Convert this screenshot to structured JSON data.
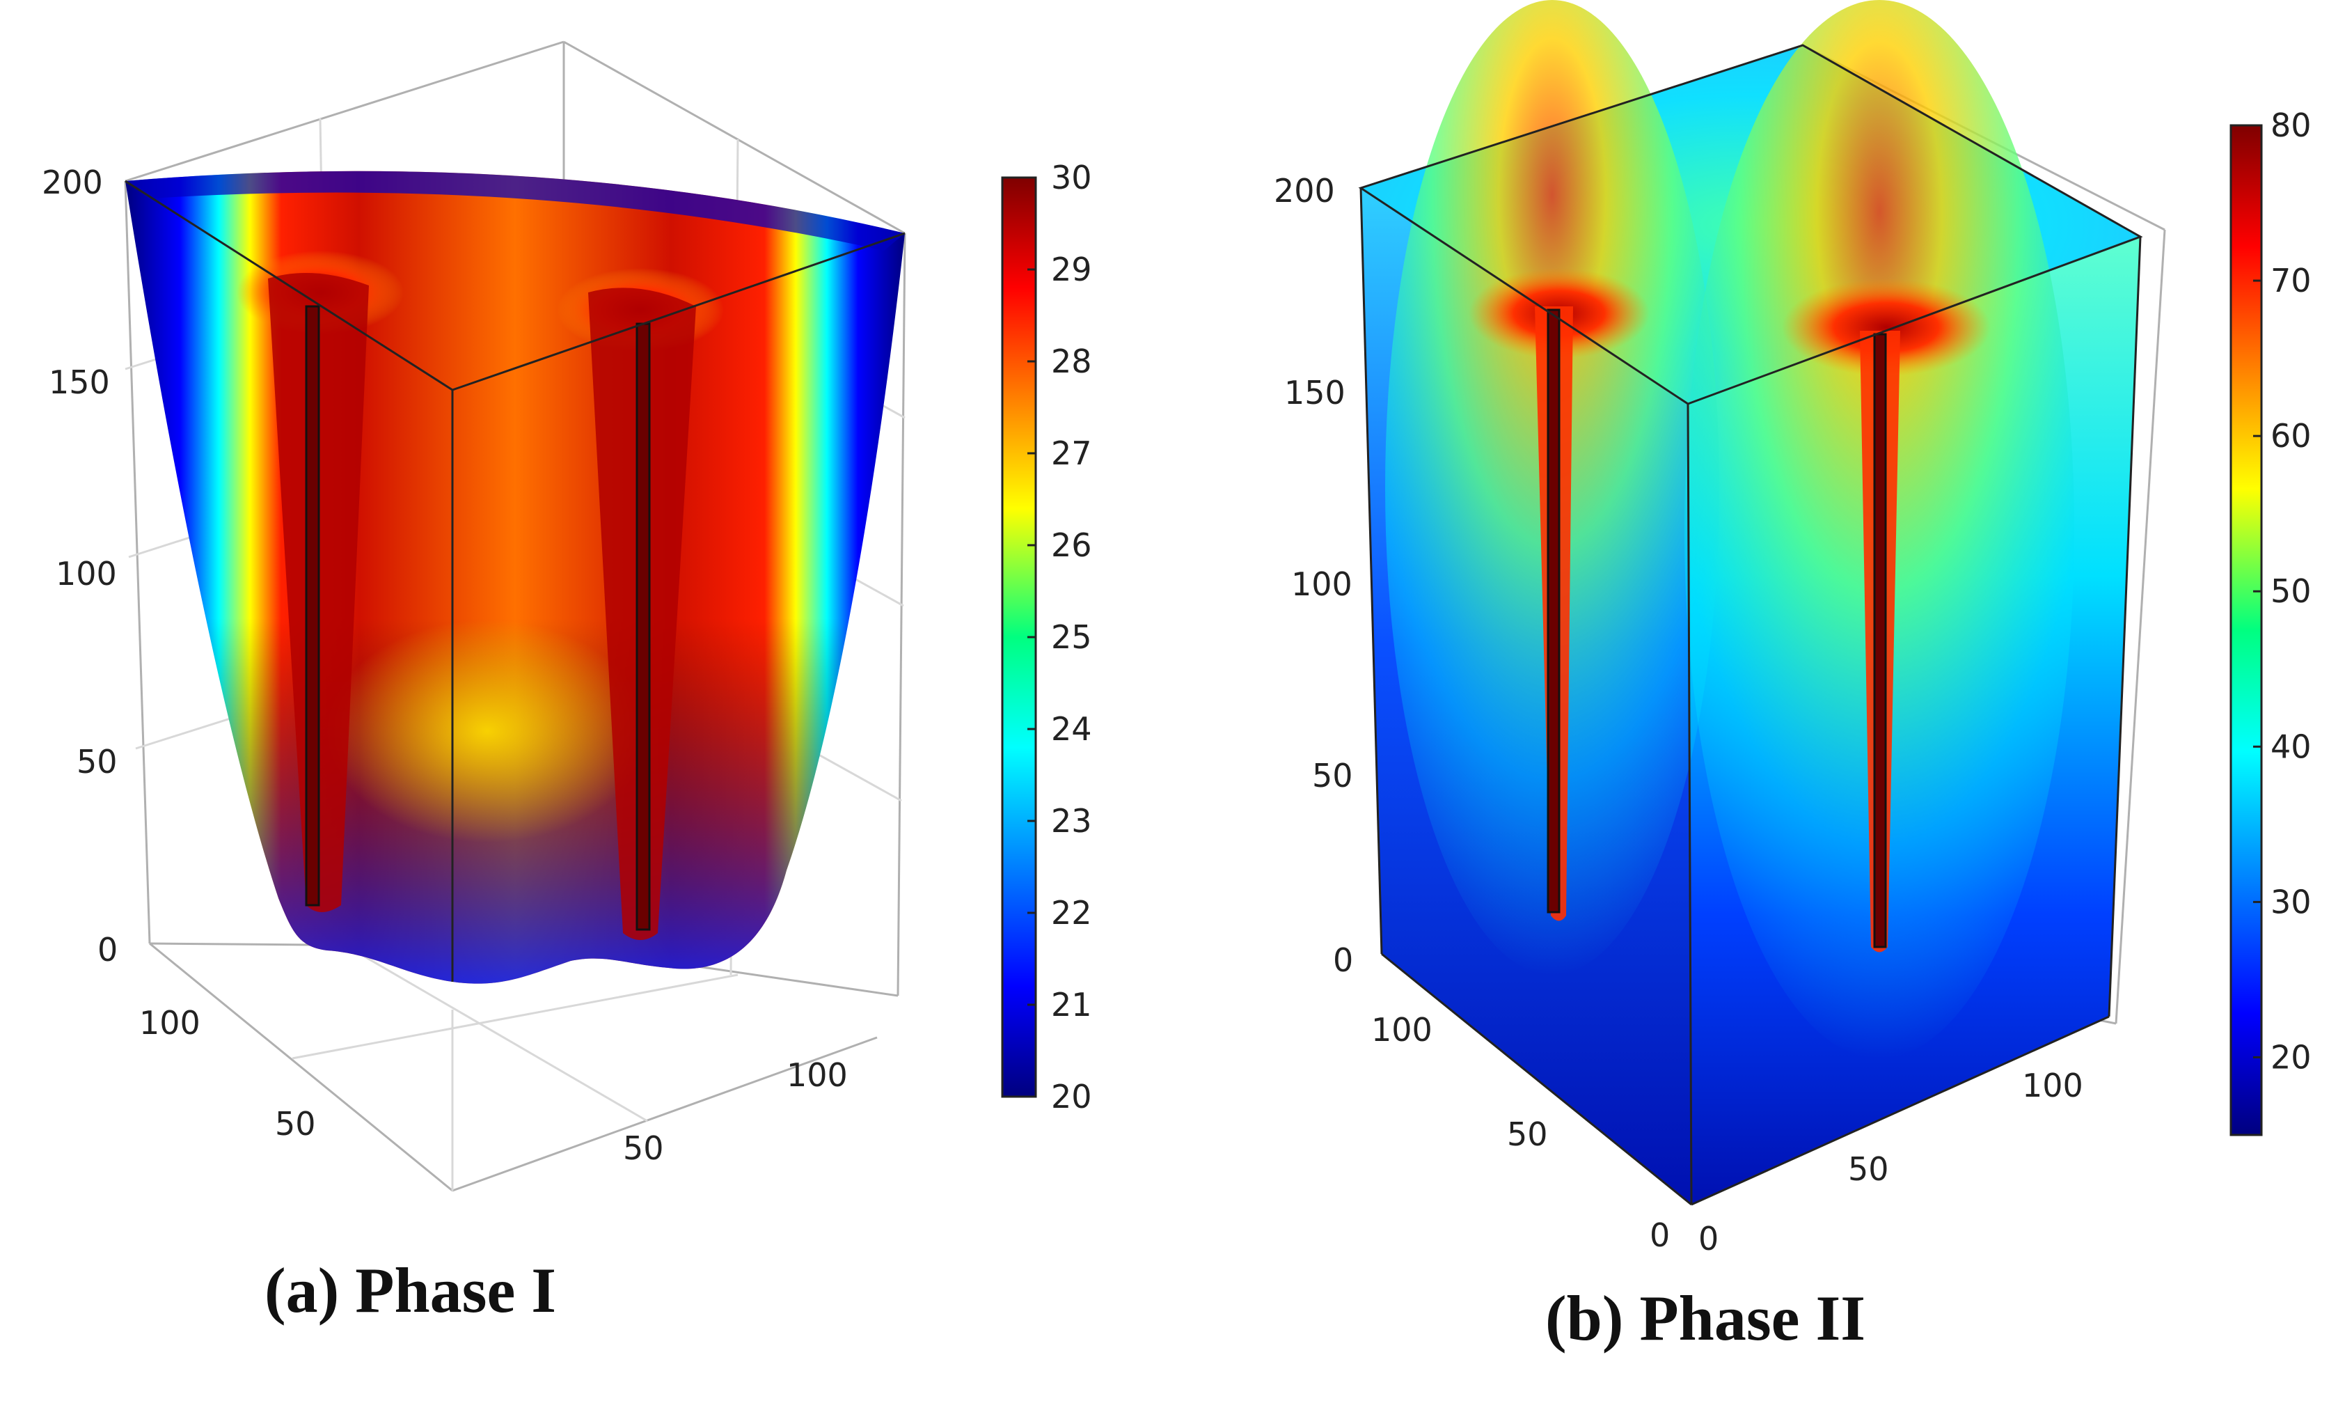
{
  "panels": [
    {
      "id": "a",
      "caption_letter": "(a)",
      "caption_title": "Phase I",
      "colorbar": {
        "min": 20,
        "max": 30,
        "ticks": [
          "30",
          "29",
          "28",
          "27",
          "26",
          "25",
          "24",
          "23",
          "22",
          "21",
          "20"
        ]
      },
      "axes": {
        "vertical_ticks": [
          "200",
          "150",
          "100",
          "50",
          "0"
        ],
        "left_depth_ticks": [
          "100",
          "50"
        ],
        "right_depth_ticks": [
          "100",
          "50"
        ]
      }
    },
    {
      "id": "b",
      "caption_letter": "(b)",
      "caption_title": "Phase II",
      "colorbar": {
        "min": 15,
        "max": 80,
        "ticks": [
          "80",
          "70",
          "60",
          "50",
          "40",
          "30",
          "20"
        ]
      },
      "axes": {
        "vertical_ticks": [
          "200",
          "150",
          "100",
          "50",
          "0"
        ],
        "left_depth_ticks": [
          "100",
          "50",
          "0"
        ],
        "right_depth_ticks": [
          "0",
          "50",
          "100"
        ]
      }
    }
  ],
  "colors": {
    "jet_dark_red": "#7f0000",
    "jet_red": "#ff0000",
    "jet_yellow": "#ffff00",
    "jet_cyan": "#00ffff",
    "jet_blue": "#0000ff",
    "jet_dark_blue": "#00007f"
  }
}
